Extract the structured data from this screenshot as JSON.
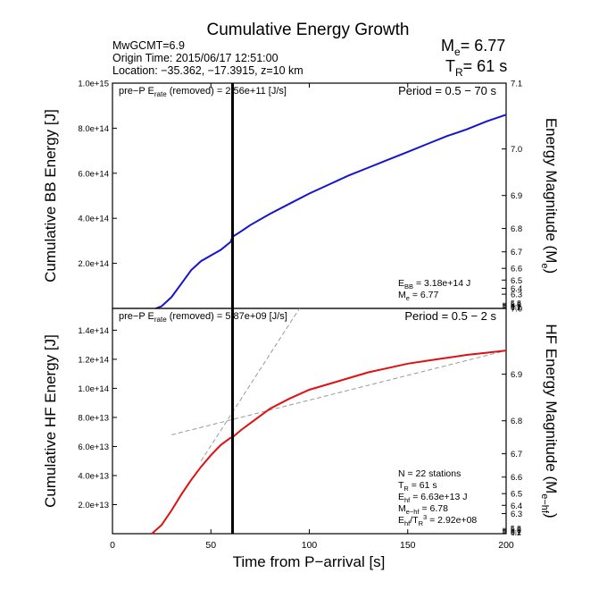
{
  "header": {
    "title": "Cumulative Energy Growth",
    "event_lines": [
      "MwGCMT=6.9",
      "Origin Time: 2015/06/17 12:51:00",
      "Location: −35.362, −17.3915, z=10 km"
    ],
    "me_label": "M",
    "me_sub": "e",
    "me_value": "= 6.77",
    "tr_label": "T",
    "tr_sub": "R",
    "tr_value": "= 61 s"
  },
  "colors": {
    "bb_line": "#1414d2",
    "hf_line": "#e01010",
    "marker_line": "#000000",
    "fit_lines": "#999999"
  },
  "chart_data": [
    {
      "type": "line",
      "panel": "top",
      "ylabel": "Cumulative BB Energy [J]",
      "y2label": "Energy Magnitude (M",
      "y2label_sub": "e",
      "y2label_end": ")",
      "xlim": [
        0,
        200
      ],
      "ylim": [
        0,
        1000000000000000.0
      ],
      "yticks": [
        200000000000000.0,
        400000000000000.0,
        600000000000000.0,
        800000000000000.0,
        1000000000000000.0
      ],
      "ytick_labels": [
        "2.0e+14",
        "4.0e+14",
        "6.0e+14",
        "8.0e+14",
        "1.0e+15"
      ],
      "y2ticks": [
        6.3,
        6.4,
        6.5,
        6.6,
        6.7,
        6.8,
        6.9,
        7.0,
        7.1
      ],
      "y2tick_labels": [
        "6.3",
        "6.4",
        "6.5",
        "6.6",
        "6.7",
        "6.8",
        "6.9",
        "7.0",
        "7.1"
      ],
      "y2ticks_minor": [
        5.8,
        5.9,
        6.0,
        6.1,
        6.2
      ],
      "y2ticks_minor_labels": [
        "5.8",
        "5.9",
        "6.0",
        "6.1",
        "6.2"
      ],
      "period_text": "Period = 0.5 − 70 s",
      "prep_label": "pre−P E",
      "prep_sub": "rate",
      "prep_value": " (removed) = 2.56e+11 [J/s]",
      "series": [
        {
          "x": [
            22,
            25,
            30,
            35,
            40,
            45,
            50,
            55,
            60,
            61,
            65,
            70,
            80,
            90,
            100,
            110,
            120,
            130,
            140,
            150,
            160,
            170,
            180,
            190,
            200
          ],
          "y": [
            0,
            10000000000000.0,
            50000000000000.0,
            110000000000000.0,
            170000000000000.0,
            210000000000000.0,
            235000000000000.0,
            260000000000000.0,
            295000000000000.0,
            318000000000000.0,
            340000000000000.0,
            370000000000000.0,
            420000000000000.0,
            465000000000000.0,
            510000000000000.0,
            550000000000000.0,
            590000000000000.0,
            625000000000000.0,
            660000000000000.0,
            695000000000000.0,
            730000000000000.0,
            765000000000000.0,
            795000000000000.0,
            830000000000000.0,
            860000000000000.0
          ]
        }
      ],
      "marker_x": 61,
      "annotation": {
        "ebb_label": "E",
        "ebb_sub": "BB",
        "ebb_value": " = 3.18e+14 J",
        "me_label": "M",
        "me_sub": "e",
        "me_value": " = 6.77"
      }
    },
    {
      "type": "line",
      "panel": "bottom",
      "ylabel": "Cumulative HF Energy [J]",
      "y2label": "HF Energy Magnitude (M",
      "y2label_sub": "e−hf",
      "y2label_end": ")",
      "xlabel": "Time from P−arrival [s]",
      "xlim": [
        0,
        200
      ],
      "xticks": [
        0,
        50,
        100,
        150,
        200
      ],
      "xtick_labels": [
        "0",
        "50",
        "100",
        "150",
        "200"
      ],
      "ylim": [
        0,
        155000000000000.0
      ],
      "yticks": [
        20000000000000.0,
        40000000000000.0,
        60000000000000.0,
        80000000000000.0,
        100000000000000.0,
        120000000000000.0,
        140000000000000.0
      ],
      "ytick_labels": [
        "2.0e+13",
        "4.0e+13",
        "6.0e+13",
        "8.0e+13",
        "1.0e+14",
        "1.2e+14",
        "1.4e+14"
      ],
      "y2ticks": [
        6.3,
        6.4,
        6.5,
        6.6,
        6.7,
        6.8,
        6.9,
        7.0
      ],
      "y2tick_labels": [
        "6.3",
        "6.4",
        "6.5",
        "6.6",
        "6.7",
        "6.8",
        "6.9",
        "7.0"
      ],
      "y2ticks_minor": [
        5.8,
        5.9,
        6.0,
        6.1,
        6.2
      ],
      "y2ticks_minor_labels": [
        "5.8",
        "5.9",
        "6.0",
        "6.1",
        "6.2"
      ],
      "period_text": "Period = 0.5 − 2 s",
      "prep_label": "pre−P E",
      "prep_sub": "rate",
      "prep_value": " (removed) = 5.87e+09 [J/s]",
      "series": [
        {
          "x": [
            20,
            25,
            30,
            35,
            40,
            45,
            50,
            55,
            60,
            61,
            65,
            70,
            75,
            80,
            90,
            100,
            110,
            120,
            130,
            140,
            150,
            160,
            170,
            180,
            190,
            200
          ],
          "y": [
            0,
            6000000000000.0,
            16000000000000.0,
            27000000000000.0,
            37000000000000.0,
            46000000000000.0,
            54000000000000.0,
            61000000000000.0,
            66000000000000.0,
            66300000000000.0,
            71000000000000.0,
            76000000000000.0,
            81000000000000.0,
            86000000000000.0,
            93000000000000.0,
            99000000000000.0,
            103000000000000.0,
            107000000000000.0,
            111000000000000.0,
            114000000000000.0,
            117000000000000.0,
            119000000000000.0,
            121000000000000.0,
            123000000000000.0,
            124500000000000.0,
            126000000000000.0
          ]
        }
      ],
      "fit_line_1": {
        "x": [
          45,
          95
        ],
        "y": [
          50000000000000.0,
          155000000000000.0
        ]
      },
      "fit_line_2": {
        "x": [
          30,
          200
        ],
        "y": [
          68000000000000.0,
          126000000000000.0
        ]
      },
      "marker_x": 61,
      "annotation": {
        "n_text": "N = 22 stations",
        "tr_label": "T",
        "tr_sub": "R",
        "tr_value": " = 61  s",
        "ehf_label": "E",
        "ehf_sub": "hf",
        "ehf_value": " = 6.63e+13 J",
        "mehf_label": "M",
        "mehf_sub": "e−hf",
        "mehf_value": " = 6.78",
        "ratio_label": "E",
        "ratio_sub": "hf",
        "ratio_mid": "/T",
        "ratio_sub2": "R",
        "ratio_sup": "3",
        "ratio_value": " =  2.92e+08"
      }
    }
  ]
}
